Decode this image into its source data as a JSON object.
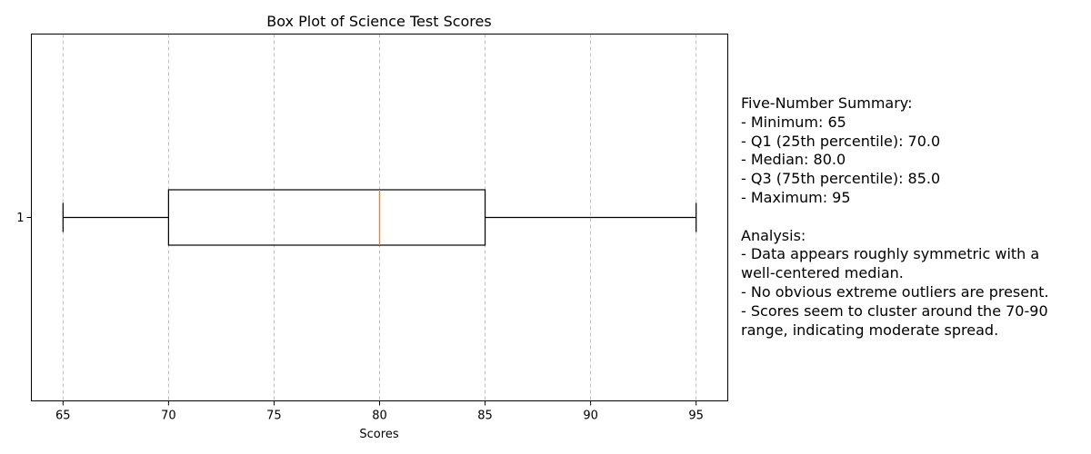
{
  "chart_data": {
    "type": "boxplot",
    "title": "Box Plot of Science Test Scores",
    "xlabel": "Scores",
    "ylabel": "",
    "orientation": "horizontal",
    "xlim": [
      63.5,
      96.5
    ],
    "xticks": [
      65,
      70,
      75,
      80,
      85,
      90,
      95
    ],
    "categories": [
      "1"
    ],
    "box": {
      "min": 65,
      "q1": 70,
      "median": 80,
      "q3": 85,
      "max": 95
    },
    "grid": {
      "x": true,
      "y": false,
      "style": "dashed"
    },
    "colors": {
      "box": "#000000",
      "median": "#ff7f0e",
      "grid": "#b0b0b0"
    }
  },
  "annotation": {
    "lines": [
      "Five-Number Summary:",
      "- Minimum: 65",
      "- Q1 (25th percentile): 70.0",
      "- Median: 80.0",
      "- Q3 (75th percentile): 85.0",
      "- Maximum: 95",
      "",
      "Analysis:",
      "- Data appears roughly symmetric with a",
      "well-centered median.",
      "- No obvious extreme outliers are present.",
      "- Scores seem to cluster around the 70-90",
      "range, indicating moderate spread."
    ]
  }
}
